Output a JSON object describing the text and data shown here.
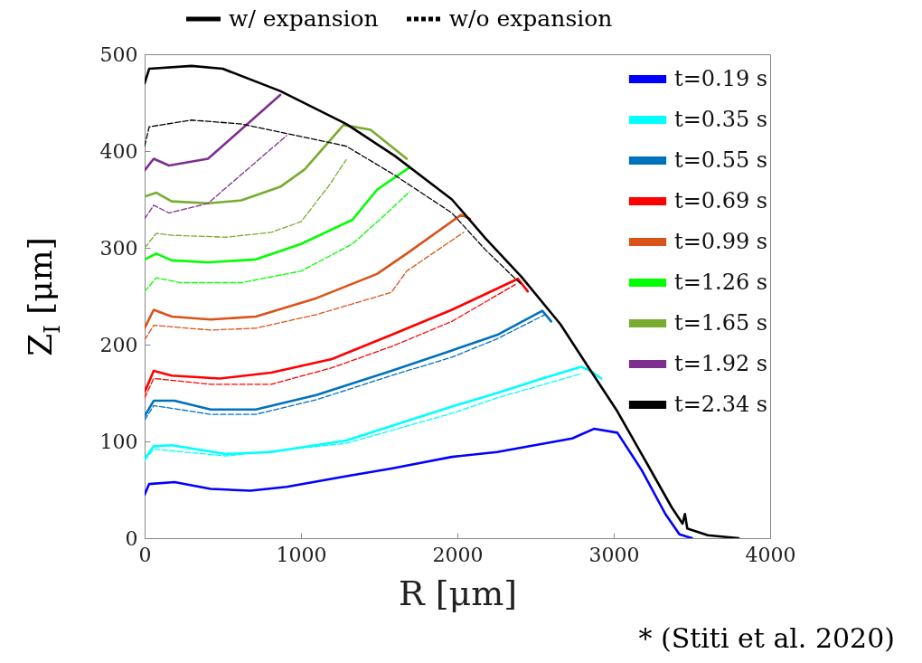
{
  "chart_data": {
    "type": "line",
    "xlabel": "R [μm]",
    "ylabel": "Z$_{I}$ [μm]",
    "xlim": [
      0,
      4000
    ],
    "ylim": [
      0,
      500
    ],
    "xticks": [
      0,
      1000,
      2000,
      3000,
      4000
    ],
    "yticks": [
      0,
      100,
      200,
      300,
      400,
      500
    ],
    "grid": false,
    "legend": "top right",
    "annotations": [
      "w/ expansion",
      "w/o expansion",
      "* (Stiti et al. 2020)"
    ],
    "series": [
      {
        "name": "t=0.19 s",
        "color": "#0000ff",
        "line_style": "solid",
        "x": [
          0,
          29,
          191,
          422,
          676,
          908,
          1289,
          1578,
          1965,
          2254,
          2734,
          2873,
          3023,
          3180,
          3330,
          3420,
          3500
        ],
        "values": [
          45,
          56,
          58,
          51,
          49,
          53,
          64,
          72,
          84,
          89,
          103,
          113,
          109,
          70,
          25,
          4,
          0
        ]
      },
      {
        "name": "t=0.35 s",
        "color": "#00ffff",
        "line_style": "solid",
        "x": [
          0,
          58,
          173,
          520,
          809,
          1289,
          1965,
          2254,
          2543,
          2792,
          2850,
          2920
        ],
        "values": [
          82,
          95,
          96,
          87,
          89,
          101,
          136,
          150,
          165,
          177,
          173,
          165
        ]
      },
      {
        "name": "t=0.55 s",
        "color": "#0072bd",
        "line_style": "solid",
        "x": [
          0,
          58,
          191,
          422,
          711,
          1098,
          1578,
          1965,
          2254,
          2543,
          2600
        ],
        "values": [
          126,
          142,
          142,
          133,
          133,
          148,
          173,
          194,
          210,
          235,
          224
        ]
      },
      {
        "name": "t=0.69 s",
        "color": "#ff0000",
        "line_style": "solid",
        "x": [
          0,
          58,
          173,
          480,
          809,
          1197,
          1578,
          1965,
          2387,
          2450
        ],
        "values": [
          151,
          173,
          168,
          165,
          171,
          185,
          210,
          236,
          268,
          255
        ]
      },
      {
        "name": "t=0.99 s",
        "color": "#d95319",
        "line_style": "solid",
        "x": [
          0,
          58,
          173,
          422,
          711,
          1098,
          1486,
          1676,
          2023,
          2081
        ],
        "values": [
          217,
          236,
          229,
          226,
          229,
          248,
          273,
          294,
          334,
          330
        ]
      },
      {
        "name": "t=1.26 s",
        "color": "#00ff00",
        "line_style": "solid",
        "x": [
          0,
          75,
          173,
          405,
          711,
          1000,
          1329,
          1486,
          1694
        ],
        "values": [
          288,
          294,
          287,
          285,
          288,
          304,
          329,
          360,
          383
        ]
      },
      {
        "name": "t=1.65 s",
        "color": "#77ac30",
        "line_style": "solid",
        "x": [
          0,
          75,
          173,
          405,
          618,
          867,
          1023,
          1272,
          1445,
          1676
        ],
        "values": [
          353,
          357,
          348,
          346,
          349,
          363,
          381,
          427,
          422,
          392
        ]
      },
      {
        "name": "t=1.92 s",
        "color": "#7e2f8e",
        "line_style": "solid",
        "x": [
          0,
          58,
          156,
          405,
          867
        ],
        "values": [
          380,
          392,
          385,
          392,
          458
        ]
      },
      {
        "name": "t=2.34 s",
        "color": "#000000",
        "line_style": "solid",
        "x": [
          0,
          29,
          300,
          500,
          867,
          1290,
          1600,
          1965,
          2179,
          2410,
          2659,
          2832,
          3023,
          3220,
          3370,
          3440,
          3455,
          3470,
          3601,
          3798
        ],
        "values": [
          470,
          485,
          488,
          485,
          462,
          428,
          395,
          350,
          310,
          270,
          221,
          178,
          131,
          75,
          32,
          15,
          25,
          10,
          3,
          0
        ]
      },
      {
        "color": "#00ffff",
        "line_style": "dashed",
        "x": [
          0,
          58,
          520,
          1289,
          1965,
          2254,
          2792
        ],
        "values": [
          80,
          92,
          85,
          98,
          129,
          145,
          170
        ]
      },
      {
        "color": "#0072bd",
        "line_style": "dashed",
        "x": [
          0,
          58,
          422,
          711,
          1098,
          1578,
          1965,
          2254,
          2561
        ],
        "values": [
          122,
          137,
          128,
          128,
          143,
          168,
          187,
          206,
          231
        ]
      },
      {
        "color": "#ff0000",
        "line_style": "dashed",
        "x": [
          0,
          58,
          422,
          809,
          1197,
          1578,
          1965,
          2370
        ],
        "values": [
          145,
          165,
          159,
          159,
          176,
          198,
          224,
          262
        ]
      },
      {
        "color": "#d95319",
        "line_style": "dashed",
        "x": [
          0,
          58,
          422,
          711,
          1098,
          1578,
          1676,
          2040
        ],
        "values": [
          205,
          220,
          215,
          217,
          231,
          254,
          276,
          316
        ]
      },
      {
        "color": "#00ff00",
        "line_style": "dashed",
        "x": [
          0,
          75,
          231,
          618,
          1000,
          1329,
          1543,
          1694
        ],
        "values": [
          255,
          269,
          264,
          264,
          276,
          304,
          335,
          358
        ]
      },
      {
        "color": "#77ac30",
        "line_style": "dashed",
        "x": [
          0,
          75,
          173,
          520,
          809,
          1000,
          1173,
          1289
        ],
        "values": [
          300,
          315,
          313,
          311,
          316,
          327,
          363,
          391
        ]
      },
      {
        "color": "#7e2f8e",
        "line_style": "dashed",
        "x": [
          0,
          58,
          156,
          405,
          908
        ],
        "values": [
          330,
          344,
          336,
          346,
          416
        ]
      },
      {
        "color": "#000000",
        "line_style": "dashed",
        "x": [
          0,
          29,
          300,
          620,
          1000,
          1290,
          1600,
          1965,
          2179,
          2410
        ],
        "values": [
          405,
          425,
          432,
          428,
          415,
          405,
          375,
          336,
          298,
          262
        ]
      }
    ]
  }
}
